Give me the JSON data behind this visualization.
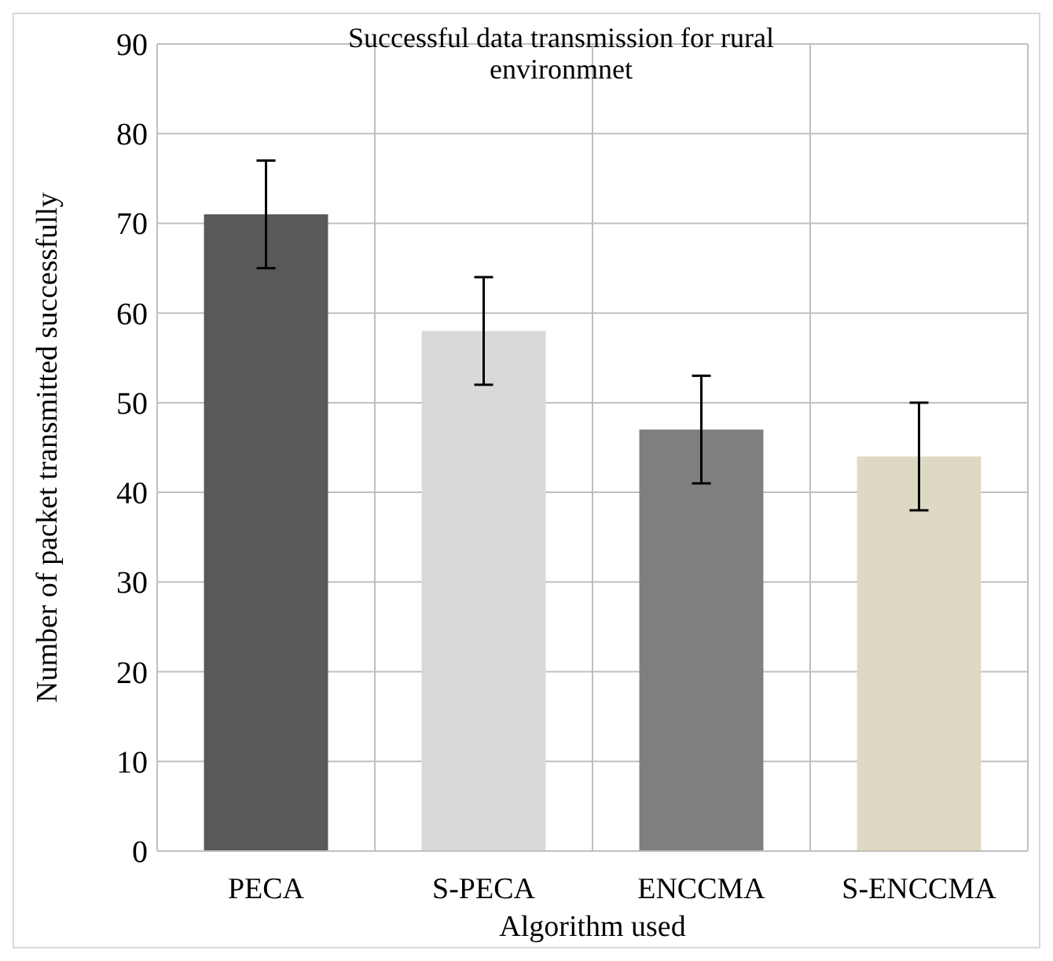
{
  "chart_data": {
    "type": "bar",
    "title": "Successful data transmission for rural environmnet",
    "xlabel": "Algorithm used",
    "ylabel": "Number of packet transmitted successfully",
    "categories": [
      "PECA",
      "S-PECA",
      "ENCCMA",
      "S-ENCCMA"
    ],
    "values": [
      71,
      58,
      47,
      44
    ],
    "colors": [
      "#595959",
      "#d9d9d9",
      "#7f7f7f",
      "#ddd9c3"
    ],
    "errors": [
      6,
      6,
      6,
      6
    ],
    "ylim": [
      0,
      90
    ],
    "yticks": [
      0,
      10,
      20,
      30,
      40,
      50,
      60,
      70,
      80,
      90
    ],
    "grid": true
  }
}
